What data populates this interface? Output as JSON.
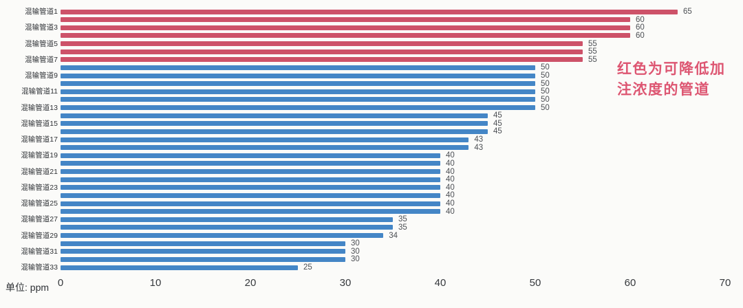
{
  "page": {
    "background": "#fbfbf9"
  },
  "chart_data": {
    "type": "bar",
    "orientation": "horizontal",
    "title": "",
    "unit_label": "单位:  ppm",
    "xlabel": "",
    "ylabel": "",
    "xlim": [
      0,
      70
    ],
    "x_ticks": [
      0,
      10,
      20,
      30,
      40,
      50,
      60,
      70
    ],
    "grid": false,
    "legend": "none",
    "bar_colors": {
      "red": "#cd5269",
      "blue": "#4486c6"
    },
    "annotation": {
      "lines": [
        "红色为可降低加",
        "注浓度的管道"
      ],
      "color": "#dd5672"
    },
    "items": [
      {
        "label": "混输管道1",
        "value": 65,
        "color": "red"
      },
      {
        "label": "",
        "value": 60,
        "color": "red"
      },
      {
        "label": "混输管道3",
        "value": 60,
        "color": "red"
      },
      {
        "label": "",
        "value": 60,
        "color": "red"
      },
      {
        "label": "混输管道5",
        "value": 55,
        "color": "red"
      },
      {
        "label": "",
        "value": 55,
        "color": "red"
      },
      {
        "label": "混输管道7",
        "value": 55,
        "color": "red"
      },
      {
        "label": "",
        "value": 50,
        "color": "blue"
      },
      {
        "label": "混输管道9",
        "value": 50,
        "color": "blue"
      },
      {
        "label": "",
        "value": 50,
        "color": "blue"
      },
      {
        "label": "混输管道11",
        "value": 50,
        "color": "blue"
      },
      {
        "label": "",
        "value": 50,
        "color": "blue"
      },
      {
        "label": "混输管道13",
        "value": 50,
        "color": "blue"
      },
      {
        "label": "",
        "value": 45,
        "color": "blue"
      },
      {
        "label": "混输管道15",
        "value": 45,
        "color": "blue"
      },
      {
        "label": "",
        "value": 45,
        "color": "blue"
      },
      {
        "label": "混输管道17",
        "value": 43,
        "color": "blue"
      },
      {
        "label": "",
        "value": 43,
        "color": "blue"
      },
      {
        "label": "混输管道19",
        "value": 40,
        "color": "blue"
      },
      {
        "label": "",
        "value": 40,
        "color": "blue"
      },
      {
        "label": "混输管道21",
        "value": 40,
        "color": "blue"
      },
      {
        "label": "",
        "value": 40,
        "color": "blue"
      },
      {
        "label": "混输管道23",
        "value": 40,
        "color": "blue"
      },
      {
        "label": "",
        "value": 40,
        "color": "blue"
      },
      {
        "label": "混输管道25",
        "value": 40,
        "color": "blue"
      },
      {
        "label": "",
        "value": 40,
        "color": "blue"
      },
      {
        "label": "混输管道27",
        "value": 35,
        "color": "blue"
      },
      {
        "label": "",
        "value": 35,
        "color": "blue"
      },
      {
        "label": "混输管道29",
        "value": 34,
        "color": "blue"
      },
      {
        "label": "",
        "value": 30,
        "color": "blue"
      },
      {
        "label": "混输管道31",
        "value": 30,
        "color": "blue"
      },
      {
        "label": "",
        "value": 30,
        "color": "blue"
      },
      {
        "label": "混输管道33",
        "value": 25,
        "color": "blue"
      }
    ]
  }
}
